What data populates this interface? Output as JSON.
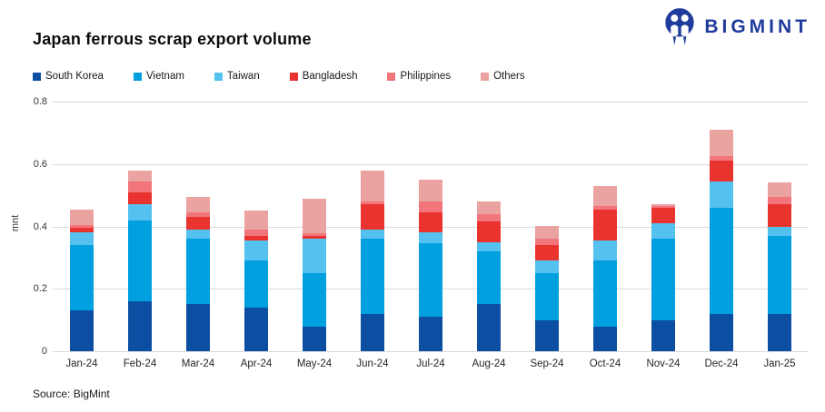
{
  "header": {
    "title": "Japan ferrous scrap export volume",
    "brand": "BIGMINT"
  },
  "footer": {
    "source": "Source: BigMint"
  },
  "colors": {
    "brand_navy": "#1F3C9C",
    "gridline": "#d9d9d9",
    "south_korea": "#0B4EA2",
    "vietnam": "#009FDF",
    "taiwan": "#55C1EE",
    "bangladesh": "#E9332E",
    "philippines": "#F1757B",
    "others": "#EBA3A2"
  },
  "chart_data": {
    "type": "bar",
    "stacked": true,
    "title": "Japan ferrous scrap export volume",
    "xlabel": "",
    "ylabel": "mnt",
    "ylim": [
      0,
      0.8
    ],
    "yticks": [
      "0",
      "0.2",
      "0.4",
      "0.6",
      "0.8"
    ],
    "grid": true,
    "legend_position": "top",
    "categories": [
      "Jan-24",
      "Feb-24",
      "Mar-24",
      "Apr-24",
      "May-24",
      "Jun-24",
      "Jul-24",
      "Aug-24",
      "Sep-24",
      "Oct-24",
      "Nov-24",
      "Dec-24",
      "Jan-25"
    ],
    "series": [
      {
        "name": "South Korea",
        "color": "#0B4EA2",
        "values": [
          0.13,
          0.16,
          0.15,
          0.14,
          0.08,
          0.12,
          0.11,
          0.15,
          0.1,
          0.08,
          0.1,
          0.12,
          0.12
        ]
      },
      {
        "name": "Vietnam",
        "color": "#009FDF",
        "values": [
          0.21,
          0.26,
          0.21,
          0.15,
          0.17,
          0.24,
          0.235,
          0.17,
          0.15,
          0.21,
          0.26,
          0.34,
          0.25
        ]
      },
      {
        "name": "Taiwan",
        "color": "#55C1EE",
        "values": [
          0.04,
          0.05,
          0.03,
          0.065,
          0.11,
          0.03,
          0.035,
          0.03,
          0.04,
          0.065,
          0.05,
          0.085,
          0.03
        ]
      },
      {
        "name": "Bangladesh",
        "color": "#E9332E",
        "values": [
          0.015,
          0.04,
          0.04,
          0.015,
          0.01,
          0.08,
          0.065,
          0.065,
          0.05,
          0.1,
          0.05,
          0.065,
          0.07
        ]
      },
      {
        "name": "Philippines",
        "color": "#F1757B",
        "values": [
          0.01,
          0.035,
          0.015,
          0.02,
          0.01,
          0.01,
          0.035,
          0.025,
          0.02,
          0.01,
          0.005,
          0.015,
          0.025
        ]
      },
      {
        "name": "Others",
        "color": "#EBA3A2",
        "values": [
          0.05,
          0.035,
          0.05,
          0.06,
          0.11,
          0.1,
          0.07,
          0.04,
          0.04,
          0.065,
          0.005,
          0.085,
          0.045
        ]
      }
    ],
    "totals": [
      0.455,
      0.58,
      0.495,
      0.45,
      0.49,
      0.58,
      0.55,
      0.48,
      0.4,
      0.53,
      0.47,
      0.71,
      0.54
    ]
  }
}
